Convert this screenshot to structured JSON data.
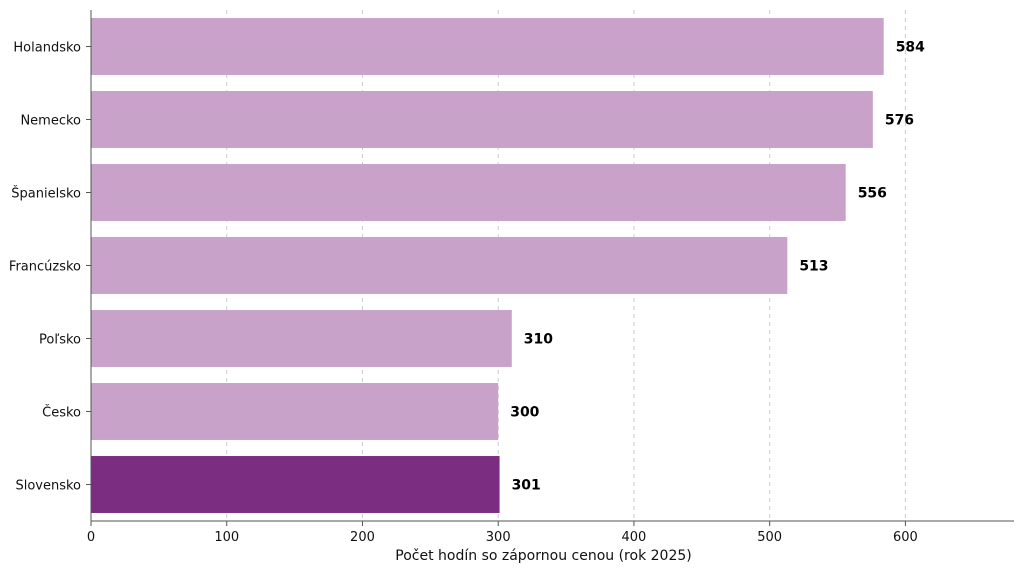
{
  "chart_data": {
    "type": "bar",
    "orientation": "horizontal",
    "categories": [
      "Holandsko",
      "Nemecko",
      "Španielsko",
      "Francúzsko",
      "Poľsko",
      "Česko",
      "Slovensko"
    ],
    "values": [
      584,
      576,
      556,
      513,
      310,
      300,
      301
    ],
    "xlabel": "Počet hodín so zápornou cenou (rok 2025)",
    "ylabel": "",
    "xlim": [
      0,
      680
    ],
    "xticks": [
      0,
      100,
      200,
      300,
      400,
      500,
      600
    ],
    "grid": "x-dashed",
    "colors": {
      "default": "#c8a2c8",
      "highlight": "#7b2d82",
      "highlight_category": "Slovensko"
    }
  }
}
